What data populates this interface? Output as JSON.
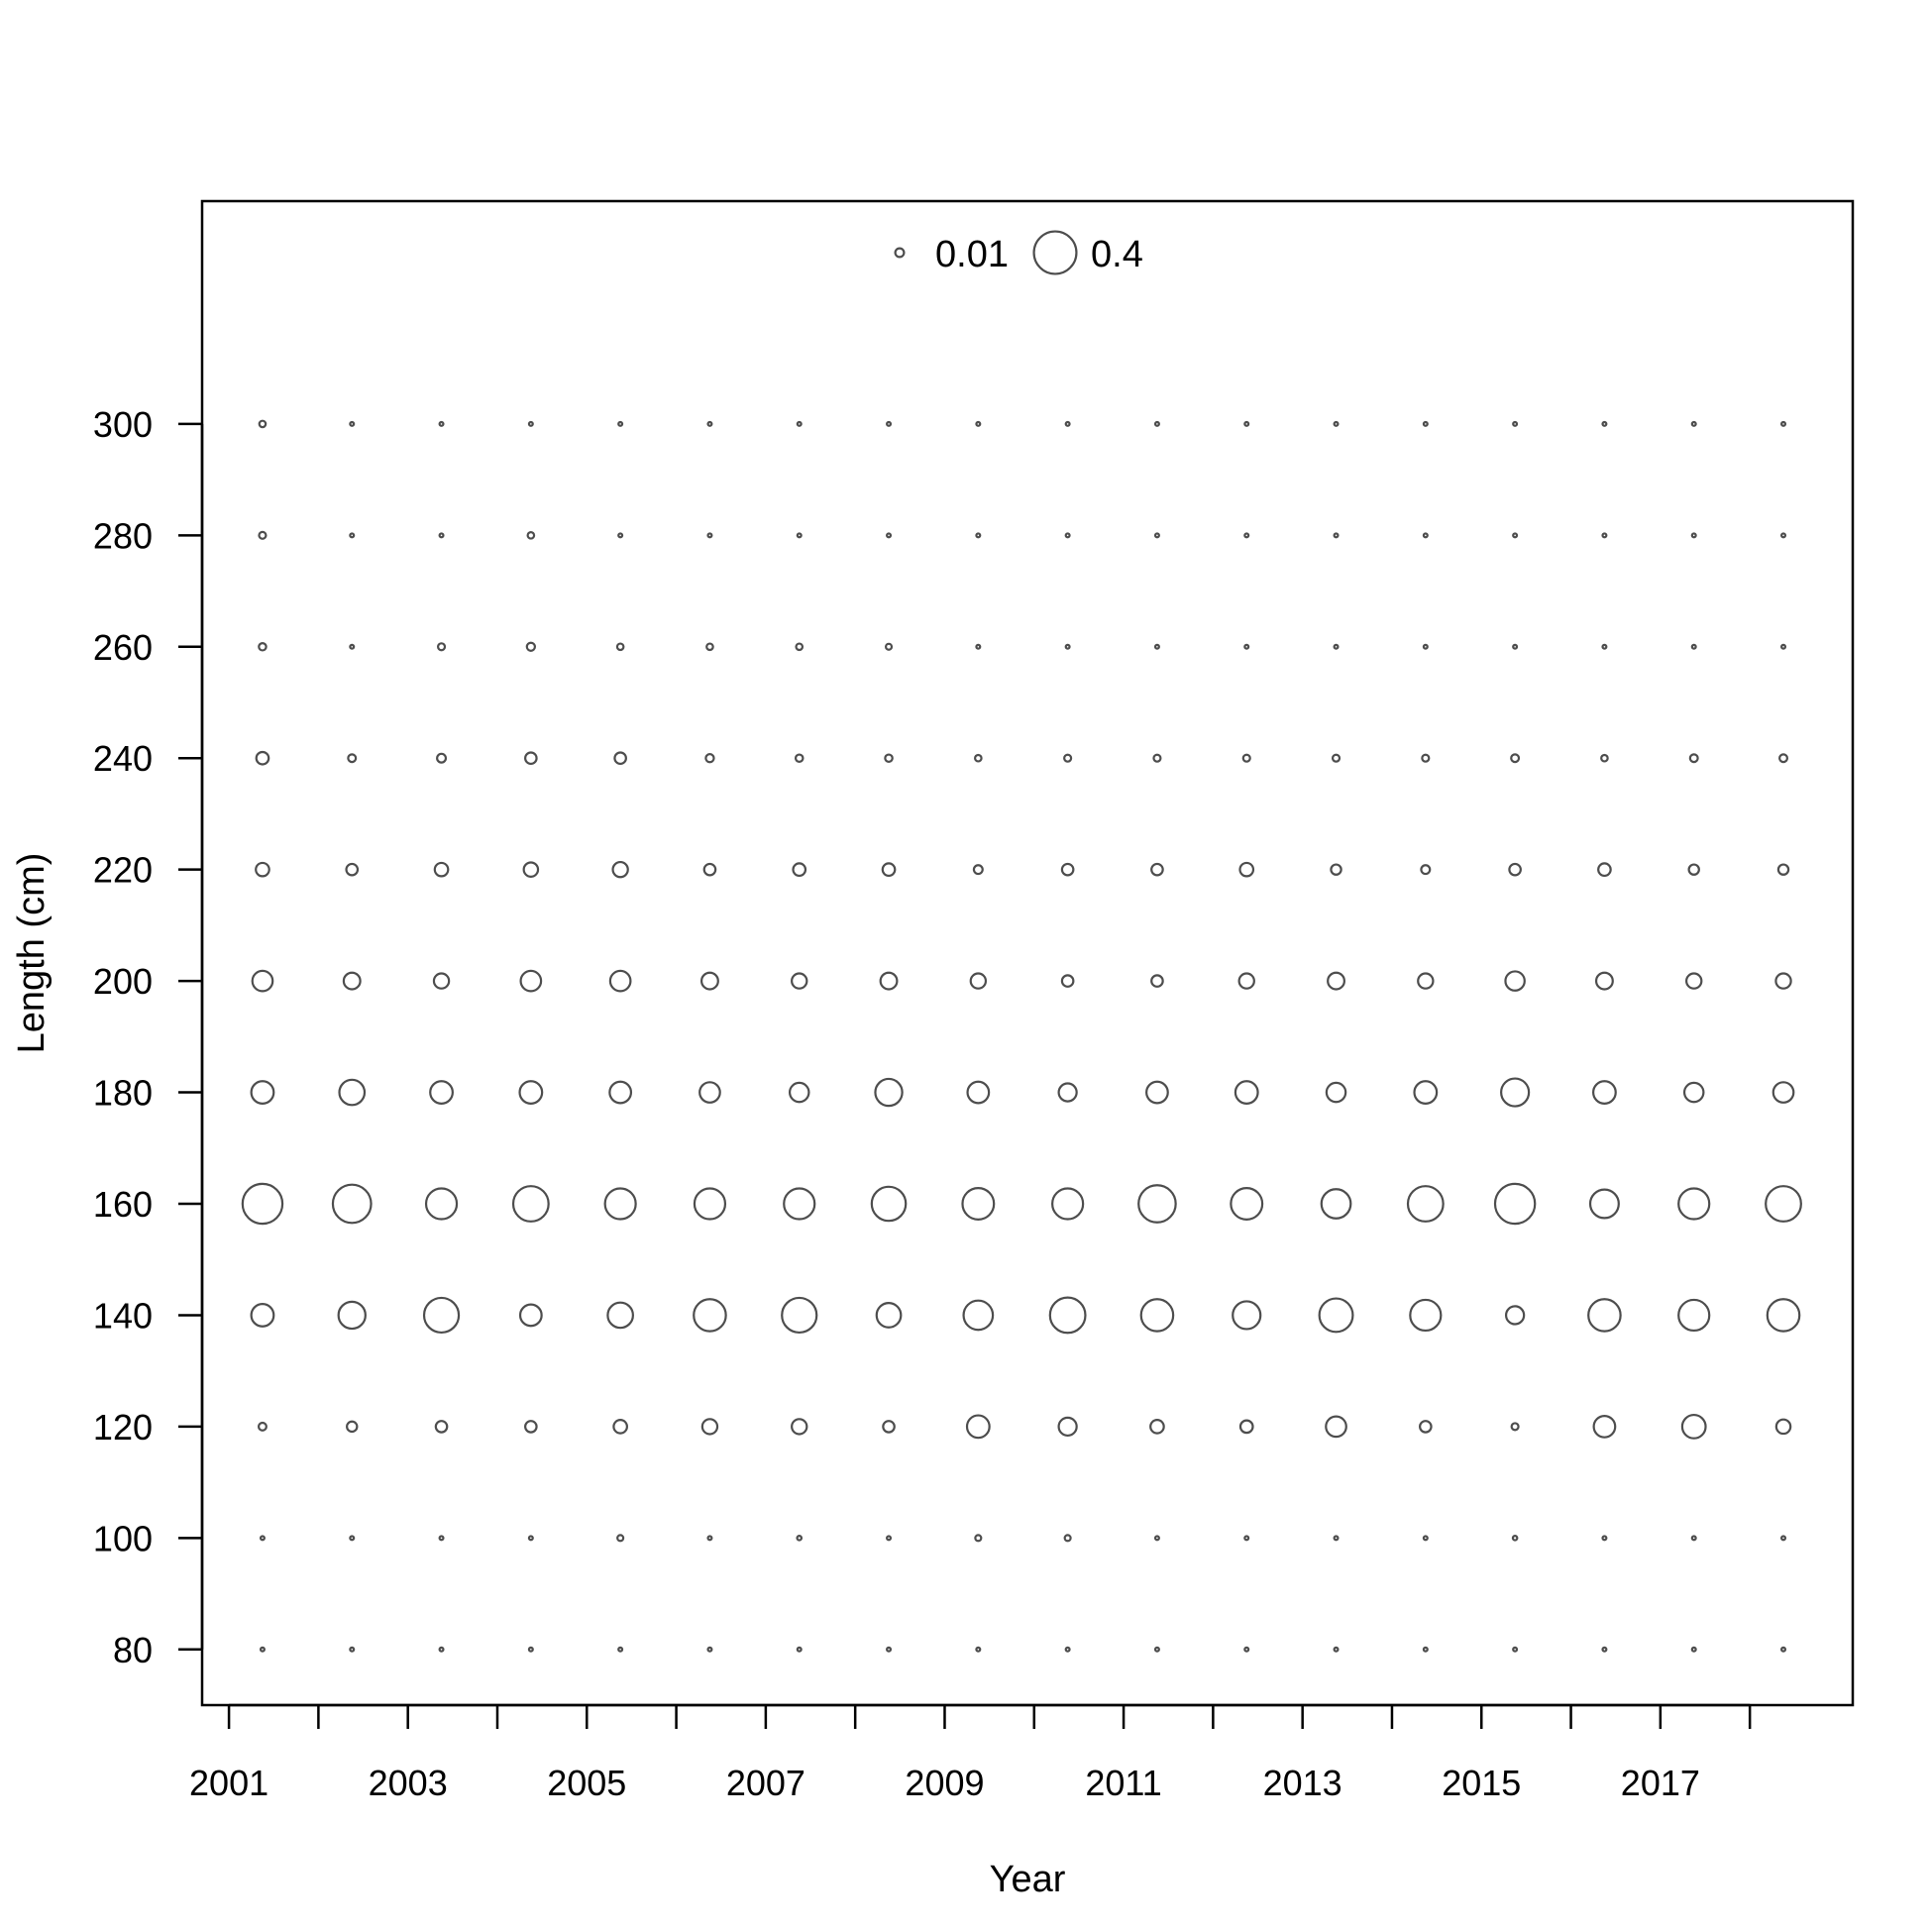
{
  "chart_data": {
    "type": "scatter",
    "subtype": "bubble",
    "title": "",
    "xlabel": "Year",
    "ylabel": "Length (cm)",
    "x_ticks": [
      2001,
      2002,
      2003,
      2004,
      2005,
      2006,
      2007,
      2008,
      2009,
      2010,
      2011,
      2012,
      2013,
      2014,
      2015,
      2016,
      2017,
      2018
    ],
    "x_tick_labels": [
      "2001",
      "2003",
      "2005",
      "2007",
      "2009",
      "2011",
      "2013",
      "2015",
      "2017"
    ],
    "x_tick_label_values": [
      2001,
      2003,
      2005,
      2007,
      2009,
      2011,
      2013,
      2015,
      2017
    ],
    "xlim": [
      2000.7,
      2019.15
    ],
    "y_ticks": [
      80,
      100,
      120,
      140,
      160,
      180,
      200,
      220,
      240,
      260,
      280,
      300
    ],
    "y_tick_labels": [
      "80",
      "100",
      "120",
      "140",
      "160",
      "180",
      "200",
      "220",
      "240",
      "260",
      "280",
      "300"
    ],
    "ylim": [
      70,
      340
    ],
    "years": [
      2001.375,
      2002.375,
      2003.375,
      2004.375,
      2005.375,
      2006.375,
      2007.375,
      2008.375,
      2009.375,
      2010.375,
      2011.375,
      2012.375,
      2013.375,
      2014.375,
      2015.375,
      2016.375,
      2017.375,
      2018.375
    ],
    "lengths": [
      80,
      100,
      120,
      140,
      160,
      180,
      200,
      220,
      240,
      260,
      280,
      300
    ],
    "proportions": [
      [
        0.0005,
        0.0005,
        0.0005,
        0.0005,
        0.0005,
        0.0005,
        0.0005,
        0.0005,
        0.0005,
        0.0005,
        0.0005,
        0.0005,
        0.0005,
        0.0005,
        0.0005,
        0.0005,
        0.0005,
        0.0005
      ],
      [
        0.0005,
        0.0005,
        0.0005,
        0.0005,
        0.003,
        0.0005,
        0.001,
        0.0005,
        0.003,
        0.003,
        0.0005,
        0.0005,
        0.0005,
        0.0005,
        0.001,
        0.0005,
        0.0005,
        0.0005
      ],
      [
        0.007,
        0.015,
        0.02,
        0.02,
        0.03,
        0.04,
        0.04,
        0.02,
        0.1,
        0.06,
        0.03,
        0.025,
        0.08,
        0.02,
        0.005,
        0.09,
        0.11,
        0.035
      ],
      [
        0.1,
        0.15,
        0.26,
        0.09,
        0.13,
        0.22,
        0.26,
        0.12,
        0.18,
        0.27,
        0.22,
        0.16,
        0.24,
        0.2,
        0.06,
        0.22,
        0.2,
        0.22
      ],
      [
        0.35,
        0.32,
        0.2,
        0.27,
        0.2,
        0.2,
        0.2,
        0.25,
        0.21,
        0.2,
        0.3,
        0.21,
        0.18,
        0.27,
        0.35,
        0.17,
        0.2,
        0.27
      ],
      [
        0.1,
        0.13,
        0.1,
        0.1,
        0.09,
        0.08,
        0.07,
        0.15,
        0.09,
        0.06,
        0.09,
        0.1,
        0.07,
        0.1,
        0.16,
        0.1,
        0.07,
        0.08
      ],
      [
        0.08,
        0.05,
        0.04,
        0.08,
        0.08,
        0.05,
        0.04,
        0.05,
        0.04,
        0.02,
        0.02,
        0.04,
        0.05,
        0.04,
        0.07,
        0.05,
        0.04,
        0.04
      ],
      [
        0.03,
        0.02,
        0.03,
        0.035,
        0.04,
        0.02,
        0.025,
        0.025,
        0.01,
        0.02,
        0.02,
        0.03,
        0.015,
        0.01,
        0.02,
        0.025,
        0.015,
        0.015
      ],
      [
        0.025,
        0.007,
        0.01,
        0.02,
        0.02,
        0.008,
        0.006,
        0.006,
        0.004,
        0.005,
        0.005,
        0.005,
        0.005,
        0.005,
        0.007,
        0.004,
        0.007,
        0.007
      ],
      [
        0.006,
        0.0005,
        0.005,
        0.008,
        0.004,
        0.004,
        0.004,
        0.003,
        0.0005,
        0.0005,
        0.0005,
        0.0005,
        0.0005,
        0.0005,
        0.0005,
        0.0005,
        0.0005,
        0.0005
      ],
      [
        0.005,
        0.0005,
        0.0005,
        0.004,
        0.0005,
        0.0005,
        0.0005,
        0.0005,
        0.0005,
        0.0005,
        0.0005,
        0.0005,
        0.0005,
        0.0005,
        0.0005,
        0.0005,
        0.0005,
        0.0005
      ],
      [
        0.004,
        0.0005,
        0.0005,
        0.0005,
        0.0005,
        0.0005,
        0.0005,
        0.0005,
        0.0005,
        0.0005,
        0.0005,
        0.0005,
        0.0005,
        0.0005,
        0.0005,
        0.0005,
        0.0005,
        0.0005
      ]
    ],
    "legend": {
      "position": "top-center",
      "entries": [
        {
          "label": "0.01",
          "value": 0.01
        },
        {
          "label": "0.4",
          "value": 0.4
        }
      ]
    },
    "grid": false
  }
}
